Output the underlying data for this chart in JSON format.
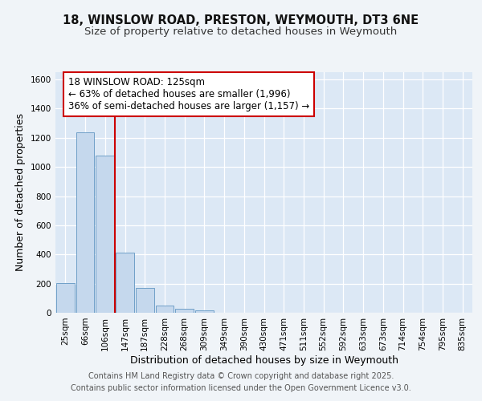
{
  "title_line1": "18, WINSLOW ROAD, PRESTON, WEYMOUTH, DT3 6NE",
  "title_line2": "Size of property relative to detached houses in Weymouth",
  "xlabel": "Distribution of detached houses by size in Weymouth",
  "ylabel": "Number of detached properties",
  "categories": [
    "25sqm",
    "66sqm",
    "106sqm",
    "147sqm",
    "187sqm",
    "228sqm",
    "268sqm",
    "309sqm",
    "349sqm",
    "390sqm",
    "430sqm",
    "471sqm",
    "511sqm",
    "552sqm",
    "592sqm",
    "633sqm",
    "673sqm",
    "714sqm",
    "754sqm",
    "795sqm",
    "835sqm"
  ],
  "values": [
    205,
    1235,
    1080,
    415,
    170,
    50,
    25,
    15,
    0,
    0,
    0,
    0,
    0,
    0,
    0,
    0,
    0,
    0,
    0,
    0,
    0
  ],
  "bar_color": "#c5d8ed",
  "bar_edge_color": "#6fa0c8",
  "vline_x": 2.5,
  "vline_color": "#cc0000",
  "annotation_text": "18 WINSLOW ROAD: 125sqm\n← 63% of detached houses are smaller (1,996)\n36% of semi-detached houses are larger (1,157) →",
  "annotation_box_color": "#ffffff",
  "annotation_box_edge": "#cc0000",
  "ylim": [
    0,
    1650
  ],
  "yticks": [
    0,
    200,
    400,
    600,
    800,
    1000,
    1200,
    1400,
    1600
  ],
  "footer_line1": "Contains HM Land Registry data © Crown copyright and database right 2025.",
  "footer_line2": "Contains public sector information licensed under the Open Government Licence v3.0.",
  "background_color": "#f0f4f8",
  "plot_bg_color": "#dce8f5",
  "grid_color": "#ffffff",
  "title_fontsize": 10.5,
  "subtitle_fontsize": 9.5,
  "axis_label_fontsize": 9,
  "tick_fontsize": 7.5,
  "footer_fontsize": 7,
  "annotation_fontsize": 8.5
}
